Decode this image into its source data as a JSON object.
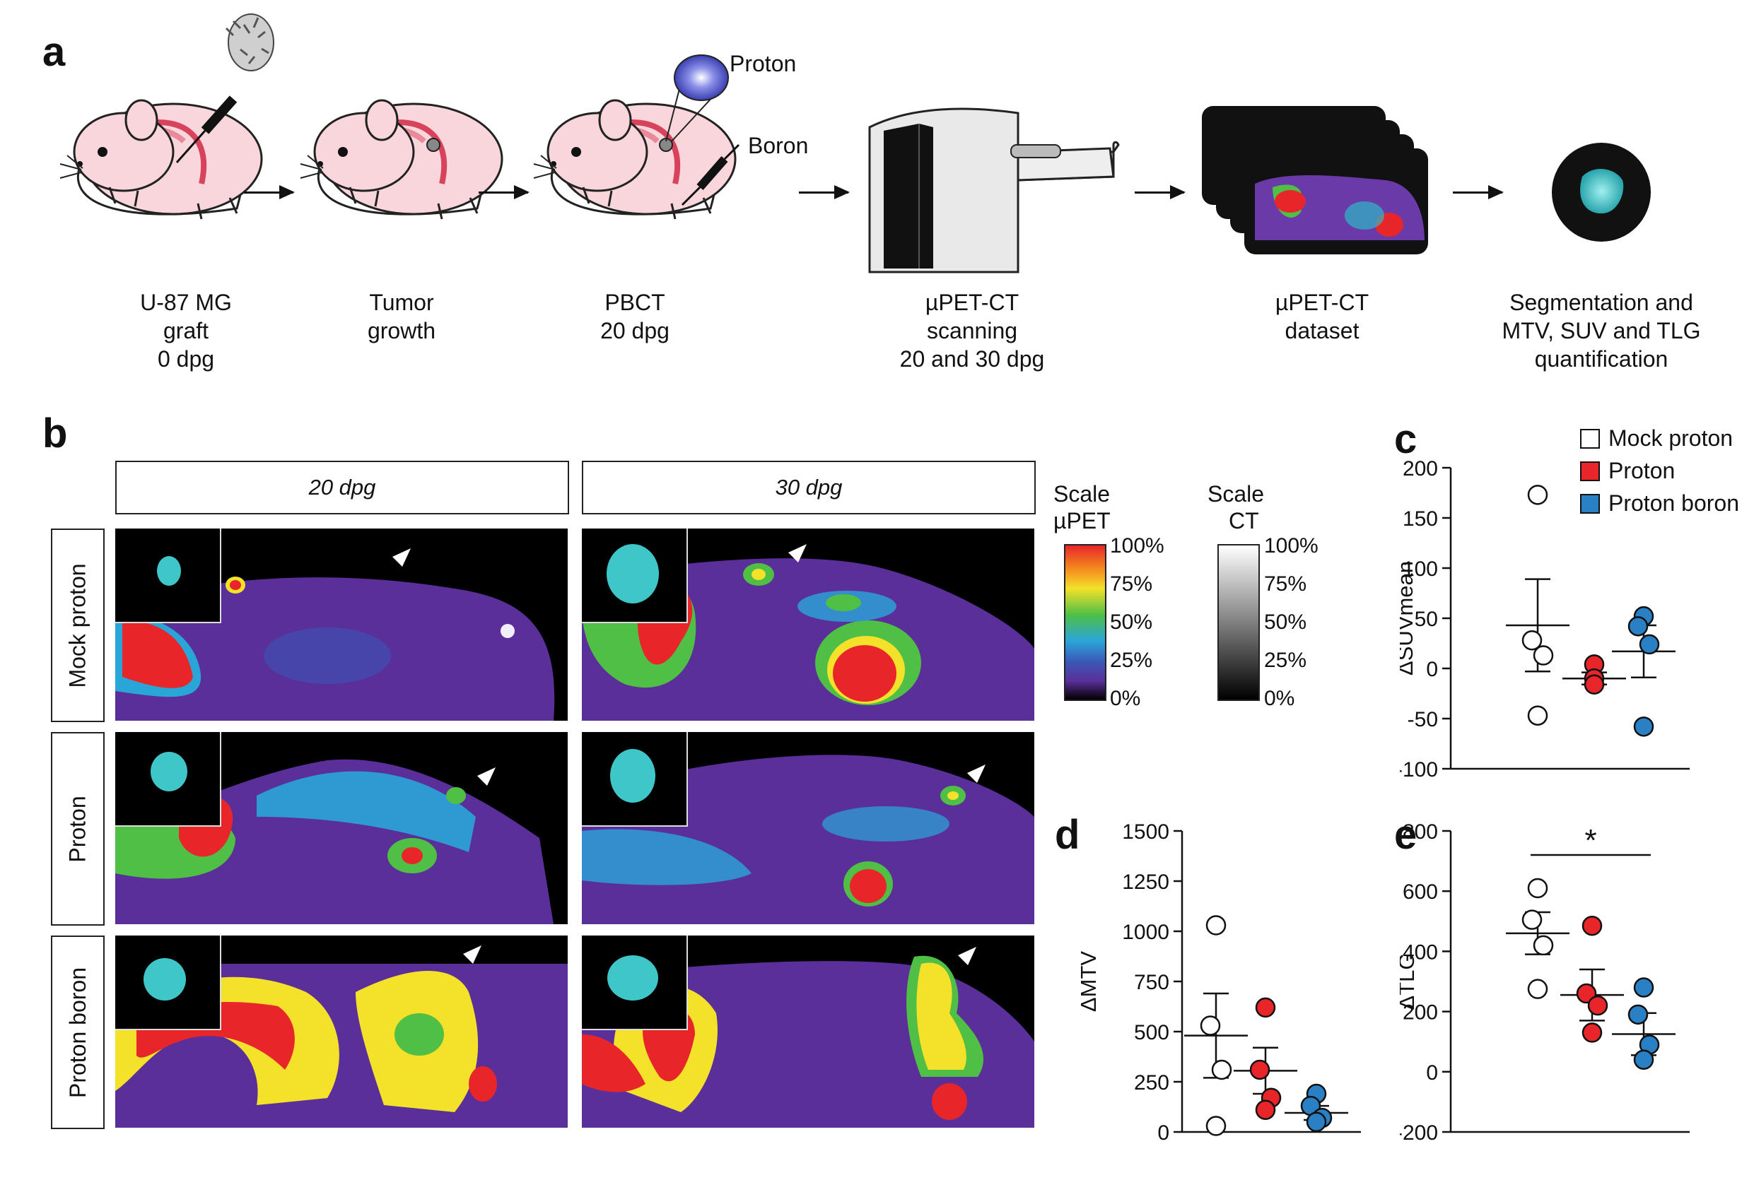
{
  "panel_a": {
    "letter": "a",
    "steps": [
      {
        "lines": [
          "U-87 MG",
          "graft",
          "0 dpg"
        ]
      },
      {
        "lines": [
          "Tumor",
          "growth"
        ]
      },
      {
        "lines": [
          "PBCT",
          "20 dpg"
        ]
      },
      {
        "lines": [
          "µPET-CT",
          "scanning",
          "20 and 30 dpg"
        ]
      },
      {
        "lines": [
          "µPET-CT",
          "dataset"
        ]
      },
      {
        "lines": [
          "Segmentation and",
          "MTV, SUV and TLG",
          "quantification"
        ]
      }
    ],
    "proton_label": "Proton",
    "boron_label": "Boron"
  },
  "panel_b": {
    "letter": "b",
    "columns": [
      "20 dpg",
      "30 dpg"
    ],
    "rows": [
      "Mock proton",
      "Proton",
      "Proton boron"
    ],
    "scale_pet": {
      "title_lines": [
        "Scale",
        "µPET"
      ],
      "ticks": [
        "100%",
        "75%",
        "50%",
        "25%",
        "0%"
      ]
    },
    "scale_ct": {
      "title_lines": [
        "Scale",
        "CT"
      ],
      "ticks": [
        "100%",
        "75%",
        "50%",
        "25%",
        "0%"
      ]
    }
  },
  "legend": {
    "items": [
      {
        "label": "Mock proton",
        "color": "#ffffff"
      },
      {
        "label": "Proton",
        "color": "#e8262a"
      },
      {
        "label": "Proton boron",
        "color": "#2a80c4"
      }
    ]
  },
  "colors": {
    "mock": "#ffffff",
    "proton": "#e8262a",
    "boron": "#2a80c4"
  },
  "chart_data": [
    {
      "panel": "c",
      "type": "scatter",
      "ylabel": "ΔSUVmean",
      "ylim": [
        -100,
        200
      ],
      "yticks": [
        -100,
        -50,
        0,
        50,
        100,
        150,
        200
      ],
      "series": [
        {
          "name": "Mock proton",
          "values": [
            173,
            28,
            13,
            -47
          ],
          "mean": 43,
          "sem": 46
        },
        {
          "name": "Proton",
          "values": [
            4,
            -10,
            -16
          ],
          "mean": -10,
          "sem": 6
        },
        {
          "name": "Proton boron",
          "values": [
            52,
            42,
            24,
            -58
          ],
          "mean": 17,
          "sem": 26
        }
      ]
    },
    {
      "panel": "d",
      "type": "scatter",
      "ylabel": "ΔMTV",
      "ylim": [
        0,
        1500
      ],
      "yticks": [
        0,
        250,
        500,
        750,
        1000,
        1250,
        1500
      ],
      "series": [
        {
          "name": "Mock proton",
          "values": [
            1030,
            530,
            310,
            30
          ],
          "mean": 480,
          "sem": 210
        },
        {
          "name": "Proton",
          "values": [
            620,
            310,
            170,
            110
          ],
          "mean": 305,
          "sem": 115
        },
        {
          "name": "Proton boron",
          "values": [
            190,
            130,
            70,
            50
          ],
          "mean": 95,
          "sem": 35
        }
      ]
    },
    {
      "panel": "e",
      "type": "scatter",
      "ylabel": "ΔTLG",
      "ylim": [
        -200,
        800
      ],
      "yticks": [
        -200,
        0,
        200,
        400,
        600,
        800
      ],
      "significance": "*",
      "series": [
        {
          "name": "Mock proton",
          "values": [
            610,
            505,
            420,
            275
          ],
          "mean": 460,
          "sem": 70
        },
        {
          "name": "Proton",
          "values": [
            485,
            260,
            220,
            130
          ],
          "mean": 255,
          "sem": 85
        },
        {
          "name": "Proton boron",
          "values": [
            280,
            190,
            90,
            40
          ],
          "mean": 125,
          "sem": 70
        }
      ]
    }
  ]
}
